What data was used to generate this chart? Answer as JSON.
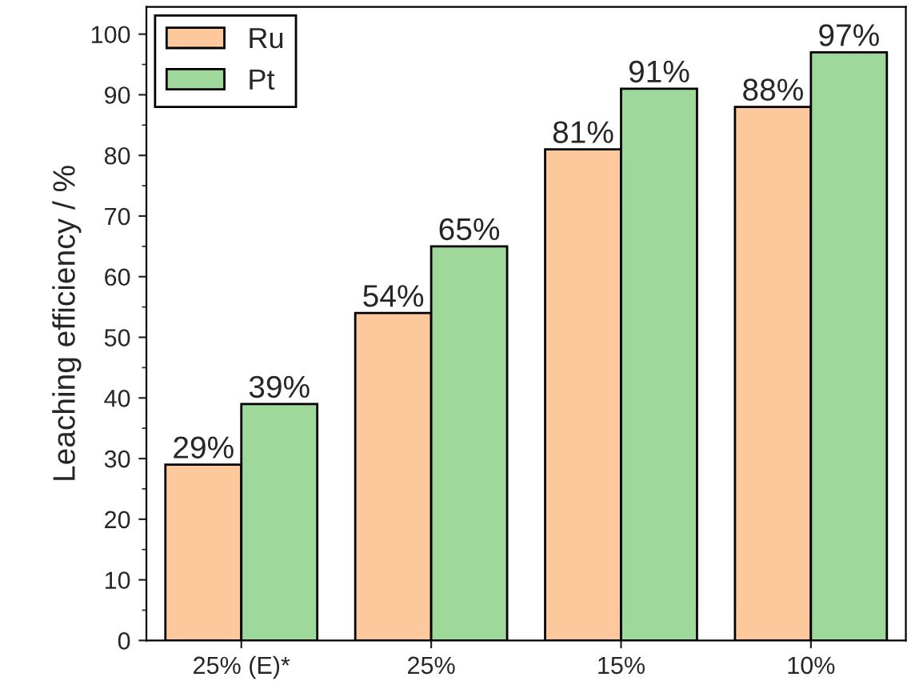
{
  "chart_data": {
    "type": "bar",
    "ylabel": "Leaching efficiency / %",
    "categories": [
      "25% (E)*",
      "25%",
      "15%",
      "10%"
    ],
    "series": [
      {
        "name": "Ru",
        "color": "#fdc89c",
        "values": [
          29,
          54,
          81,
          88
        ],
        "value_labels": [
          "29%",
          "54%",
          "81%",
          "88%"
        ]
      },
      {
        "name": "Pt",
        "color": "#9ed89b",
        "values": [
          39,
          65,
          91,
          97
        ],
        "value_labels": [
          "39%",
          "65%",
          "91%",
          "97%"
        ]
      }
    ],
    "ylim": [
      0,
      104.5
    ],
    "yticks": [
      0,
      10,
      20,
      30,
      40,
      50,
      60,
      70,
      80,
      90,
      100
    ],
    "legend": "top left",
    "grid": false
  }
}
